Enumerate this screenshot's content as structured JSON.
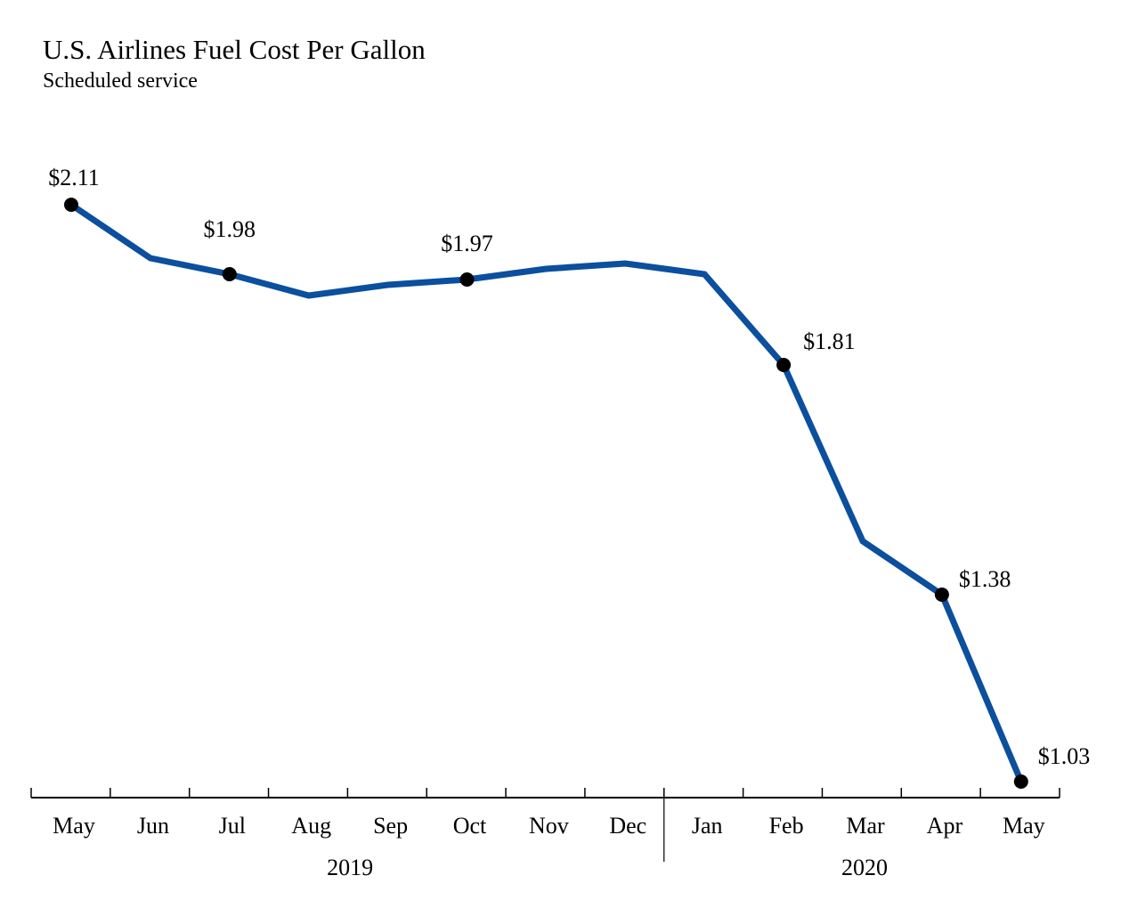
{
  "chart_data": {
    "type": "line",
    "title": "U.S. Airlines Fuel Cost Per Gallon",
    "subtitle": "Scheduled service",
    "categories": [
      "May",
      "Jun",
      "Jul",
      "Aug",
      "Sep",
      "Oct",
      "Nov",
      "Dec",
      "Jan",
      "Feb",
      "Mar",
      "Apr",
      "May"
    ],
    "year_groups": [
      {
        "label": "2019",
        "months": 8
      },
      {
        "label": "2020",
        "months": 5
      }
    ],
    "series": [
      {
        "values": [
          2.11,
          2.01,
          1.98,
          1.94,
          1.96,
          1.97,
          1.99,
          2.0,
          1.98,
          1.81,
          1.48,
          1.38,
          1.03
        ],
        "color": "#0b4f9e"
      }
    ],
    "data_labels": [
      {
        "index": 0,
        "text": "$2.11"
      },
      {
        "index": 2,
        "text": "$1.98"
      },
      {
        "index": 5,
        "text": "$1.97"
      },
      {
        "index": 9,
        "text": "$1.81"
      },
      {
        "index": 11,
        "text": "$1.38"
      },
      {
        "index": 12,
        "text": "$1.03"
      }
    ],
    "xlabel": "",
    "ylabel": "",
    "ylim": [
      1.0,
      2.25
    ],
    "grid": false,
    "y_axis_visible": false
  }
}
